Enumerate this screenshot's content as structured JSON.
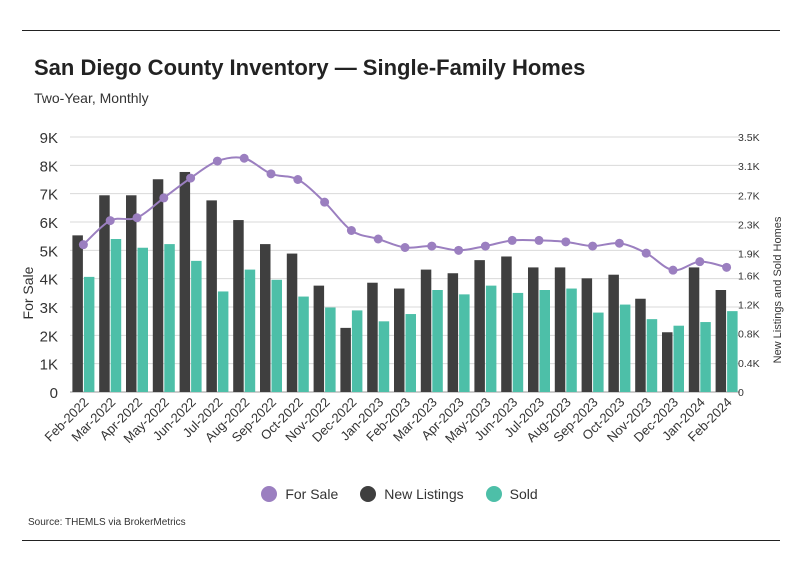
{
  "header": {
    "title": "San Diego County Inventory — Single-Family Homes",
    "subtitle": "Two-Year, Monthly"
  },
  "footer": {
    "source": "Source:  THEMLS via BrokerMetrics"
  },
  "colors": {
    "for_sale": "#9b7fc0",
    "new_listings": "#3f3f3f",
    "sold": "#4dbfa8",
    "grid": "#d9d9d9",
    "rule": "#222222"
  },
  "chart_data": {
    "type": "bar",
    "title": "San Diego County Inventory — Single-Family Homes",
    "subtitle": "Two-Year, Monthly",
    "categories": [
      "Feb-2022",
      "Mar-2022",
      "Apr-2022",
      "May-2022",
      "Jun-2022",
      "Jul-2022",
      "Aug-2022",
      "Sep-2022",
      "Oct-2022",
      "Nov-2022",
      "Dec-2022",
      "Jan-2023",
      "Feb-2023",
      "Mar-2023",
      "Apr-2023",
      "May-2023",
      "Jun-2023",
      "Jul-2023",
      "Aug-2023",
      "Sep-2023",
      "Oct-2023",
      "Nov-2023",
      "Dec-2023",
      "Jan-2024",
      "Feb-2024"
    ],
    "y_left": {
      "label": "For Sale",
      "range": [
        0,
        9000
      ],
      "ticks": [
        0,
        1000,
        2000,
        3000,
        4000,
        5000,
        6000,
        7000,
        8000,
        9000
      ],
      "tick_labels": [
        "0",
        "1K",
        "2K",
        "3K",
        "4K",
        "5K",
        "6K",
        "7K",
        "8K",
        "9K"
      ]
    },
    "y_right": {
      "label": "New Listings and Sold Homes",
      "range": [
        0,
        3500
      ],
      "ticks": [
        0,
        400,
        800,
        1200,
        1600,
        1900,
        2300,
        2700,
        3100,
        3500
      ],
      "tick_labels": [
        "0",
        "0.4K",
        "0.8K",
        "1.2K",
        "1.6K",
        "1.9K",
        "2.3K",
        "2.7K",
        "3.1K",
        "3.5K"
      ]
    },
    "grid": true,
    "legend_position": "bottom",
    "series": [
      {
        "name": "For Sale",
        "type": "line",
        "axis": "left",
        "values": [
          5200,
          6050,
          6150,
          6850,
          7550,
          8150,
          8250,
          7700,
          7500,
          6700,
          5700,
          5400,
          5100,
          5150,
          5000,
          5150,
          5350,
          5350,
          5300,
          5150,
          5250,
          4900,
          4300,
          4600,
          4400
        ]
      },
      {
        "name": "New Listings",
        "type": "bar",
        "axis": "right",
        "values": [
          2150,
          2700,
          2700,
          2920,
          3020,
          2630,
          2360,
          2030,
          1900,
          1460,
          880,
          1500,
          1420,
          1680,
          1630,
          1810,
          1860,
          1710,
          1710,
          1560,
          1610,
          1280,
          820,
          1710,
          1400
        ]
      },
      {
        "name": "Sold",
        "type": "bar",
        "axis": "right",
        "values": [
          1580,
          2100,
          1980,
          2030,
          1800,
          1380,
          1680,
          1540,
          1310,
          1160,
          1120,
          970,
          1070,
          1400,
          1340,
          1460,
          1360,
          1400,
          1420,
          1090,
          1200,
          1000,
          910,
          960,
          1110
        ]
      }
    ]
  }
}
